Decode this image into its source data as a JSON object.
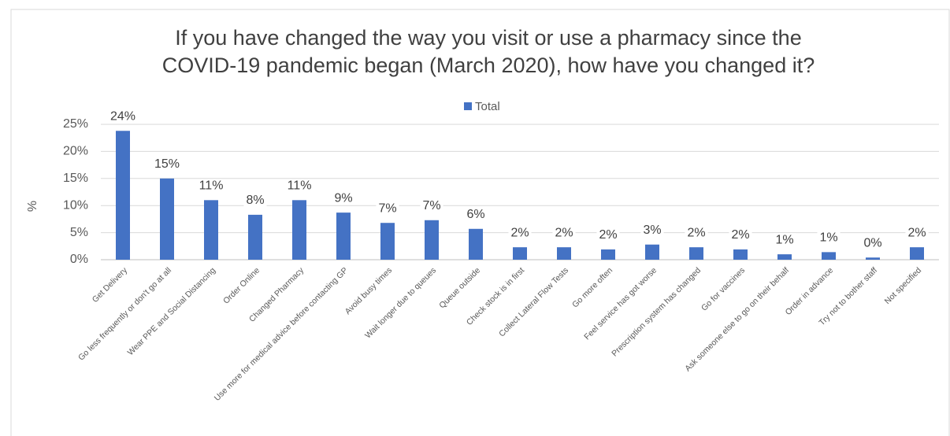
{
  "chart_data": {
    "type": "bar",
    "title": [
      "If you have changed the way you visit or use a pharmacy since the",
      "COVID-19 pandemic began (March 2020), how have you changed it?"
    ],
    "ylabel": "%",
    "categories": [
      "Get Delivery",
      "Go less frequently or don't go at all",
      "Wear PPE and Social Distancing",
      "Order Online",
      "Changed Pharmacy",
      "Use more for medical advice before contacting GP",
      "Avoid busy times",
      "Wait longer due to queues",
      "Queue outside",
      "Check stock is in first",
      "Collect Lateral Flow Tests",
      "Go more often",
      "Feel service has got worse",
      "Prescription system has changed",
      "Go for vaccines",
      "Ask someone else to go on their behalf",
      "Order in advance",
      "Try not to bother staff",
      "Not specified"
    ],
    "series": [
      {
        "name": "Total",
        "color": "#4472c4",
        "values": [
          23.8,
          15.0,
          11.0,
          8.3,
          11.0,
          8.7,
          6.8,
          7.3,
          5.7,
          2.3,
          2.3,
          1.9,
          2.8,
          2.3,
          1.9,
          1.0,
          1.4,
          0.4,
          2.3
        ],
        "value_labels": [
          "24%",
          "15%",
          "11%",
          "8%",
          "11%",
          "9%",
          "7%",
          "7%",
          "6%",
          "2%",
          "2%",
          "2%",
          "3%",
          "2%",
          "2%",
          "1%",
          "1%",
          "0%",
          "2%"
        ]
      }
    ],
    "ylim": [
      0,
      25
    ],
    "yticks": [
      {
        "value": 0,
        "label": "0%"
      },
      {
        "value": 5,
        "label": "5%"
      },
      {
        "value": 10,
        "label": "10%"
      },
      {
        "value": 15,
        "label": "15%"
      },
      {
        "value": 20,
        "label": "20%"
      },
      {
        "value": 25,
        "label": "25%"
      }
    ],
    "grid": true,
    "legend": "top"
  }
}
